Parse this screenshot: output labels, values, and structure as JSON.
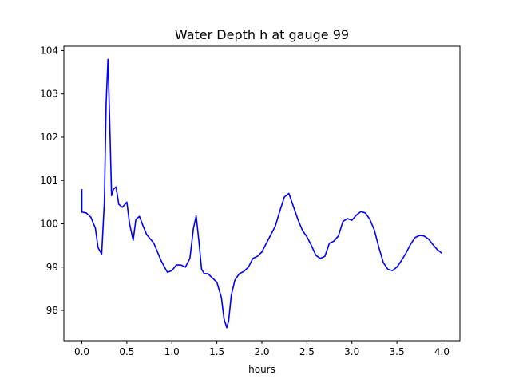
{
  "chart_data": {
    "type": "line",
    "title": "Water Depth h at gauge 99",
    "xlabel": "hours",
    "ylabel": "",
    "xlim": [
      -0.2,
      4.2
    ],
    "ylim": [
      97.3,
      104.1
    ],
    "x_ticks": [
      0.0,
      0.5,
      1.0,
      1.5,
      2.0,
      2.5,
      3.0,
      3.5,
      4.0
    ],
    "x_tick_labels": [
      "0.0",
      "0.5",
      "1.0",
      "1.5",
      "2.0",
      "2.5",
      "3.0",
      "3.5",
      "4.0"
    ],
    "y_ticks": [
      98,
      99,
      100,
      101,
      102,
      103,
      104
    ],
    "y_tick_labels": [
      "98",
      "99",
      "100",
      "101",
      "102",
      "103",
      "104"
    ],
    "grid": false,
    "line_color": "#0000ff",
    "series": [
      {
        "x": [
          0.0,
          0.0,
          0.05,
          0.1,
          0.15,
          0.18,
          0.22,
          0.25,
          0.27,
          0.29,
          0.31,
          0.33,
          0.35,
          0.38,
          0.41,
          0.45,
          0.5,
          0.53,
          0.57,
          0.6,
          0.64,
          0.68,
          0.72,
          0.8,
          0.88,
          0.95,
          1.0,
          1.05,
          1.1,
          1.15,
          1.2,
          1.24,
          1.27,
          1.3,
          1.33,
          1.36,
          1.4,
          1.45,
          1.5,
          1.55,
          1.58,
          1.61,
          1.63,
          1.66,
          1.7,
          1.75,
          1.8,
          1.85,
          1.9,
          1.95,
          2.0,
          2.05,
          2.1,
          2.15,
          2.2,
          2.25,
          2.3,
          2.35,
          2.4,
          2.45,
          2.5,
          2.55,
          2.6,
          2.65,
          2.7,
          2.75,
          2.8,
          2.85,
          2.9,
          2.95,
          3.0,
          3.05,
          3.1,
          3.15,
          3.2,
          3.25,
          3.3,
          3.35,
          3.4,
          3.45,
          3.5,
          3.55,
          3.6,
          3.65,
          3.7,
          3.75,
          3.8,
          3.85,
          3.9,
          3.95,
          4.0
        ],
        "y": [
          100.8,
          100.27,
          100.25,
          100.15,
          99.9,
          99.45,
          99.3,
          100.5,
          102.8,
          103.8,
          102.3,
          100.65,
          100.8,
          100.85,
          100.45,
          100.38,
          100.5,
          100.0,
          99.62,
          100.1,
          100.17,
          99.95,
          99.75,
          99.55,
          99.15,
          98.88,
          98.92,
          99.05,
          99.05,
          99.0,
          99.2,
          99.9,
          100.18,
          99.6,
          98.95,
          98.85,
          98.85,
          98.75,
          98.65,
          98.3,
          97.8,
          97.6,
          97.75,
          98.35,
          98.7,
          98.85,
          98.9,
          99.0,
          99.2,
          99.25,
          99.35,
          99.55,
          99.75,
          99.95,
          100.3,
          100.62,
          100.7,
          100.4,
          100.1,
          99.85,
          99.7,
          99.5,
          99.27,
          99.2,
          99.25,
          99.55,
          99.6,
          99.72,
          100.05,
          100.12,
          100.08,
          100.2,
          100.28,
          100.25,
          100.1,
          99.85,
          99.45,
          99.1,
          98.95,
          98.92,
          99.0,
          99.15,
          99.32,
          99.52,
          99.68,
          99.73,
          99.72,
          99.65,
          99.52,
          99.4,
          99.32
        ]
      }
    ]
  }
}
